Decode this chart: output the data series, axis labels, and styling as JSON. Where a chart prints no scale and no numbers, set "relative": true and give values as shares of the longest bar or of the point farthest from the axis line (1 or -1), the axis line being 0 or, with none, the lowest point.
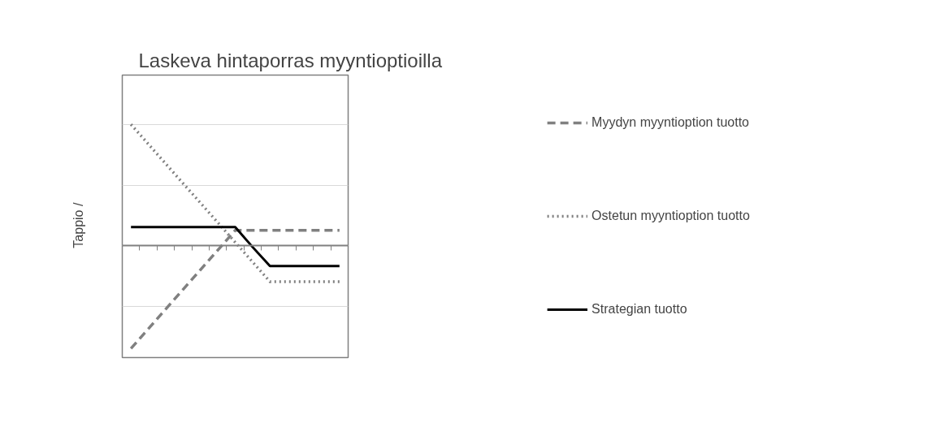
{
  "chart_data": {
    "type": "line",
    "title": "Laskeva hintaporras myyntioptioilla",
    "ylabel": "Tappio      /",
    "relative": true,
    "grid": "y",
    "legend": "right",
    "categories": [
      null,
      null,
      null,
      null,
      null,
      null,
      null,
      null,
      null,
      null,
      null,
      null,
      null
    ],
    "series": [
      {
        "name": "Myydyn myyntioption tuotto",
        "color": "#808080",
        "line_style": "dashed",
        "values": [
          -0.846,
          -0.684,
          -0.521,
          -0.359,
          -0.197,
          -0.035,
          0.128,
          0.128,
          0.128,
          0.128,
          0.128,
          0.128,
          0.128
        ]
      },
      {
        "name": "Ostetun myyntioption tuotto",
        "color": "#808080",
        "line_style": "dotted",
        "values": [
          1.0,
          0.838,
          0.676,
          0.514,
          0.353,
          0.191,
          0.029,
          -0.133,
          -0.295,
          -0.295,
          -0.295,
          -0.295,
          -0.295
        ]
      },
      {
        "name": "Strategian tuotto",
        "color": "#000000",
        "line_style": "solid",
        "values": [
          0.154,
          0.154,
          0.154,
          0.154,
          0.154,
          0.154,
          0.154,
          -0.01,
          -0.167,
          -0.167,
          -0.167,
          -0.167,
          -0.167
        ]
      }
    ]
  }
}
